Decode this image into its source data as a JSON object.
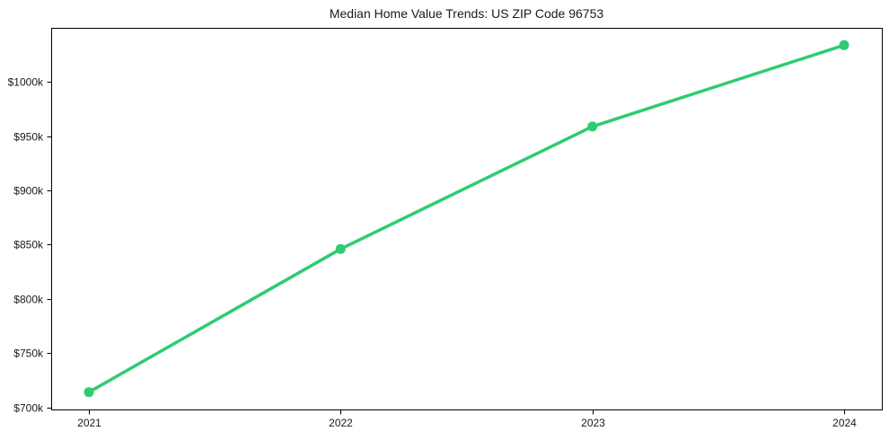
{
  "figure": {
    "title": "Median Home Value Trends: US ZIP Code 96753"
  },
  "chart_data": {
    "type": "line",
    "title": "Median Home Value Trends: US ZIP Code 96753",
    "x": [
      2021,
      2022,
      2023,
      2024
    ],
    "series": [
      {
        "name": "Median home value",
        "values": [
          714,
          846,
          959,
          1034
        ],
        "unit": "USD thousands"
      }
    ],
    "xlabel": "",
    "ylabel": "",
    "xlim": [
      2020.85,
      2024.15
    ],
    "ylim": [
      698,
      1050
    ],
    "xticks": [
      2021,
      2022,
      2023,
      2024
    ],
    "xtick_labels": [
      "2021",
      "2022",
      "2023",
      "2024"
    ],
    "yticks": [
      700,
      750,
      800,
      850,
      900,
      950,
      1000
    ],
    "ytick_labels": [
      "$700k",
      "$750k",
      "$800k",
      "$850k",
      "$900k",
      "$950k",
      "$1000k"
    ],
    "grid": false,
    "legend": "none",
    "line_color": "#2ecc71",
    "marker": "circle",
    "line_width": 3.5,
    "marker_radius": 5.5,
    "axis_color": "#000000",
    "text_color": "#1a1a1a",
    "background": "#ffffff"
  }
}
